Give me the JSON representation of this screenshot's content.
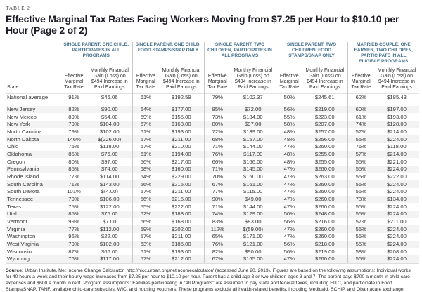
{
  "page": {
    "table_label": "TABLE 2",
    "title": "Effective Marginal Tax Rates Facing Workers Moving from $7.25 per Hour to $10.10 per Hour (Page 2 of 2)"
  },
  "colors": {
    "header_blue": "#44708c",
    "title_dark": "#1c1c26",
    "divider": "#c9c9c9",
    "stripe": "#f3f3f3"
  },
  "table": {
    "state_header": "State",
    "groups": [
      "SINGLE PARENT, ONE CHILD, PARTICIPATES IN ALL PROGRAMS",
      "SINGLE PARENT, ONE CHILD, FOOD STAMPS/SNAP ONLY",
      "SINGLE PARENT, TWO CHILDREN, PARTICIPATES IN ALL PROGRAMS",
      "SINGLE PARENT, TWO CHILDREN, FOOD STAMPS/SNAP ONLY",
      "MARRIED COUPLE, ONE EARNER, TWO CHILDREN, PARTICIPATE IN ALL ELIGIBLE PROGRAMS"
    ],
    "sub_headers": {
      "rate": "Effective Marginal Tax Rate",
      "gain": "Monthly Financial Gain (Loss) on $494 Increase in Paid Earnings"
    },
    "national": {
      "label": "National average",
      "values": [
        "91%",
        "$46.06",
        "61%",
        "$192.59",
        "79%",
        "$102.37",
        "50%",
        "$245.61",
        "62%",
        "$185.43"
      ]
    },
    "rows": [
      {
        "state": "New Jersey",
        "values": [
          "82%",
          "$90.00",
          "64%",
          "$177.00",
          "85%",
          "$72.00",
          "56%",
          "$219.00",
          "60%",
          "$197.00"
        ]
      },
      {
        "state": "New Mexico",
        "values": [
          "89%",
          "$54.00",
          "69%",
          "$155.00",
          "73%",
          "$134.00",
          "55%",
          "$223.00",
          "61%",
          "$193.00"
        ]
      },
      {
        "state": "New York",
        "values": [
          "79%",
          "$104.00",
          "67%",
          "$163.00",
          "80%",
          "$97.00",
          "58%",
          "$207.00",
          "74%",
          "$128.00"
        ]
      },
      {
        "state": "North Carolina",
        "values": [
          "79%",
          "$102.00",
          "61%",
          "$193.00",
          "72%",
          "$139.00",
          "48%",
          "$257.00",
          "57%",
          "$214.00"
        ]
      },
      {
        "state": "North Dakota",
        "values": [
          "146%",
          "$(226.00)",
          "57%",
          "$211.00",
          "68%",
          "$157.00",
          "48%",
          "$256.00",
          "55%",
          "$224.00"
        ]
      },
      {
        "state": "Ohio",
        "values": [
          "76%",
          "$118.00",
          "57%",
          "$210.00",
          "71%",
          "$144.00",
          "47%",
          "$260.00",
          "76%",
          "$118.00"
        ]
      },
      {
        "state": "Oklahoma",
        "values": [
          "85%",
          "$76.00",
          "61%",
          "$194.00",
          "76%",
          "$117.00",
          "48%",
          "$255.00",
          "57%",
          "$214.00"
        ]
      },
      {
        "state": "Oregon",
        "values": [
          "80%",
          "$97.00",
          "56%",
          "$217.00",
          "66%",
          "$166.00",
          "48%",
          "$255.00",
          "55%",
          "$221.00"
        ]
      },
      {
        "state": "Pennsylvania",
        "values": [
          "85%",
          "$74.00",
          "68%",
          "$160.00",
          "71%",
          "$145.00",
          "47%",
          "$260.00",
          "55%",
          "$224.00"
        ]
      },
      {
        "state": "Rhode Island",
        "values": [
          "77%",
          "$114.00",
          "54%",
          "$229.00",
          "70%",
          "$150.00",
          "47%",
          "$263.00",
          "55%",
          "$222.00"
        ]
      },
      {
        "state": "South Carolina",
        "values": [
          "71%",
          "$143.00",
          "56%",
          "$215.00",
          "67%",
          "$161.00",
          "47%",
          "$260.00",
          "55%",
          "$224.00"
        ]
      },
      {
        "state": "South Dakota",
        "values": [
          "101%",
          "$(4.00)",
          "57%",
          "$211.00",
          "77%",
          "$115.00",
          "47%",
          "$260.00",
          "55%",
          "$224.00"
        ]
      },
      {
        "state": "Tennessee",
        "values": [
          "79%",
          "$106.00",
          "56%",
          "$215.00",
          "90%",
          "$49.00",
          "47%",
          "$260.00",
          "73%",
          "$134.00"
        ]
      },
      {
        "state": "Texas",
        "values": [
          "75%",
          "$122.00",
          "55%",
          "$222.00",
          "71%",
          "$144.00",
          "47%",
          "$260.00",
          "55%",
          "$224.00"
        ]
      },
      {
        "state": "Utah",
        "values": [
          "85%",
          "$75.00",
          "62%",
          "$188.00",
          "74%",
          "$129.00",
          "50%",
          "$248.00",
          "55%",
          "$224.00"
        ]
      },
      {
        "state": "Vermont",
        "values": [
          "99%",
          "$7.00",
          "66%",
          "$168.00",
          "83%",
          "$83.00",
          "56%",
          "$216.00",
          "57%",
          "$211.00"
        ]
      },
      {
        "state": "Virginia",
        "values": [
          "77%",
          "$112.00",
          "59%",
          "$202.00",
          "112%",
          "$(59.00)",
          "47%",
          "$260.00",
          "55%",
          "$224.00"
        ]
      },
      {
        "state": "Washington",
        "values": [
          "96%",
          "$22.00",
          "57%",
          "$211.00",
          "65%",
          "$171.00",
          "47%",
          "$260.00",
          "55%",
          "$224.00"
        ]
      },
      {
        "state": "West Virginia",
        "values": [
          "79%",
          "$102.00",
          "63%",
          "$185.00",
          "76%",
          "$121.00",
          "56%",
          "$218.00",
          "55%",
          "$224.00"
        ]
      },
      {
        "state": "Wisconsin",
        "values": [
          "87%",
          "$66.00",
          "61%",
          "$193.00",
          "82%",
          "$90.00",
          "56%",
          "$219.00",
          "58%",
          "$208.00"
        ]
      },
      {
        "state": "Wyoming",
        "values": [
          "76%",
          "$117.00",
          "57%",
          "$212.00",
          "67%",
          "$165.00",
          "47%",
          "$260.00",
          "55%",
          "$224.00"
        ]
      }
    ]
  },
  "footer": {
    "source_label": "Source:",
    "source_text": " Urban Institute, Net Income Change Calculator, http://nicc.urban.org/netincomecalculator/ (accessed June 20, 2013). Figures are based on the following assumptions: Individual works for 40 hours a week and their hourly wage increases from $7.25 per hour to $10.10 per hour. Parent has a child age 3 or two children ages 3 and 7. The parent pays $700 a month in child care expenses and $600 a month in rent. Program assumptions: Families participating in “All Programs” are assumed to pay state and federal taxes, including EITC, and participate in Food Stamps/SNAP, TANF, available child-care subsidies, WIC, and housing vouchers. These programs exclude all health-related benefits, including Medicaid, SCHIP, and Obamacare exchange subsidies. Families participating in just SNAP are assumed to receive food stamps and Earned Income Tax Credit payments, but otherwise not participate in any other state or federal means-tested programs."
  }
}
